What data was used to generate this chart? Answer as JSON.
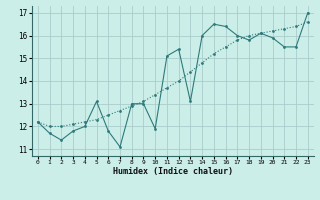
{
  "xlabel": "Humidex (Indice chaleur)",
  "background_color": "#cceee8",
  "grid_color": "#aacccc",
  "line_color": "#2d7a7a",
  "xlim": [
    -0.5,
    23.5
  ],
  "ylim": [
    10.7,
    17.3
  ],
  "xticks": [
    0,
    1,
    2,
    3,
    4,
    5,
    6,
    7,
    8,
    9,
    10,
    11,
    12,
    13,
    14,
    15,
    16,
    17,
    18,
    19,
    20,
    21,
    22,
    23
  ],
  "yticks": [
    11,
    12,
    13,
    14,
    15,
    16,
    17
  ],
  "series1_x": [
    0,
    1,
    2,
    3,
    4,
    5,
    6,
    7,
    8,
    9,
    10,
    11,
    12,
    13,
    14,
    15,
    16,
    17,
    18,
    19,
    20,
    21,
    22,
    23
  ],
  "series1_y": [
    12.2,
    11.7,
    11.4,
    11.8,
    12.0,
    13.1,
    11.8,
    11.1,
    13.0,
    13.0,
    11.9,
    15.1,
    15.4,
    13.1,
    16.0,
    16.5,
    16.4,
    16.0,
    15.8,
    16.1,
    15.9,
    15.5,
    15.5,
    17.0
  ],
  "series2_x": [
    0,
    1,
    2,
    3,
    4,
    5,
    6,
    7,
    8,
    9,
    10,
    11,
    12,
    13,
    14,
    15,
    16,
    17,
    18,
    19,
    20,
    21,
    22,
    23
  ],
  "series2_y": [
    12.2,
    12.0,
    12.0,
    12.1,
    12.2,
    12.3,
    12.5,
    12.7,
    12.9,
    13.1,
    13.4,
    13.7,
    14.0,
    14.4,
    14.8,
    15.2,
    15.5,
    15.8,
    16.0,
    16.1,
    16.2,
    16.3,
    16.4,
    16.6
  ]
}
